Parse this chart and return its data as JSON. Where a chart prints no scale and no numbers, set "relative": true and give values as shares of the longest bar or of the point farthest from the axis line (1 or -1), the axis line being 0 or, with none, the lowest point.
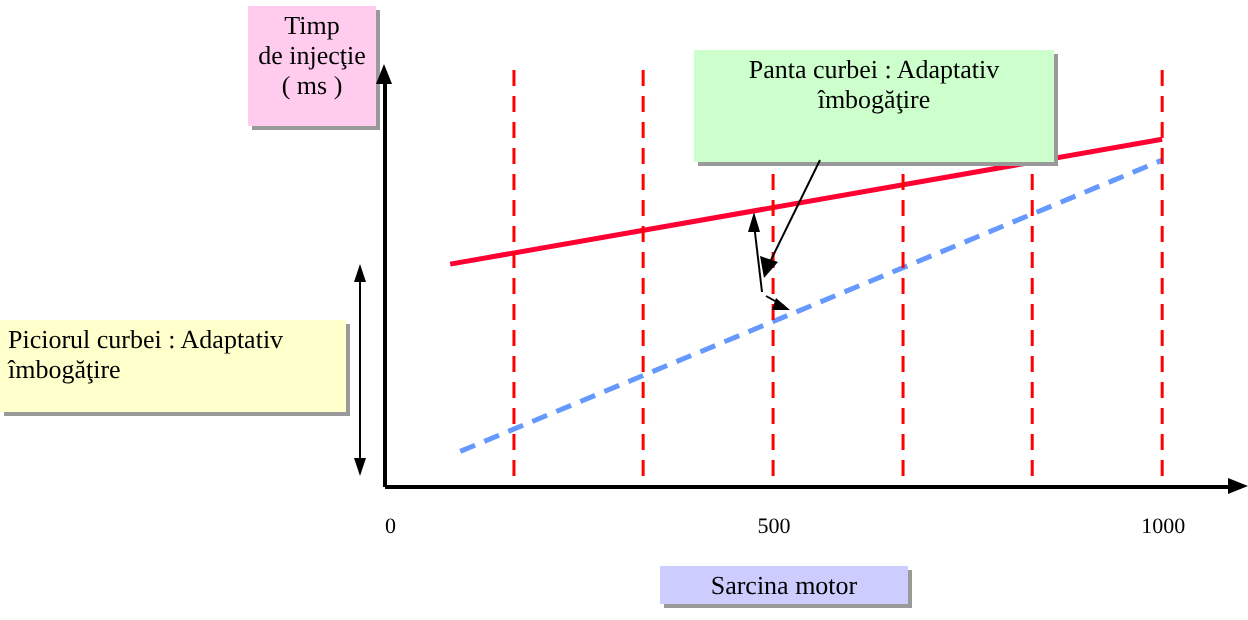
{
  "chart_data": {
    "type": "line",
    "relative": true,
    "xlabel": "Sarcina motor",
    "ylabel": "Timp\nde injecţie\n( ms )",
    "xlim": [
      0,
      1100
    ],
    "xticks": [
      0,
      500,
      1000
    ],
    "grid": false,
    "series": [
      {
        "color": "#ff0033",
        "line_style": "solid",
        "x": [
          85,
          1000
        ],
        "values": [
          0.64,
          1
        ]
      },
      {
        "color": "#6699ff",
        "line_style": "dashed",
        "x": [
          98,
          1000
        ],
        "values": [
          0.1,
          0.94
        ]
      }
    ],
    "ref_lines": [
      {
        "axis": "x",
        "value": 167,
        "color": "#ff0000",
        "line_style": "dashed"
      },
      {
        "axis": "x",
        "value": 333,
        "color": "#ff0000",
        "line_style": "dashed"
      },
      {
        "axis": "x",
        "value": 500,
        "color": "#ff0000",
        "line_style": "dashed"
      },
      {
        "axis": "x",
        "value": 667,
        "color": "#ff0000",
        "line_style": "dashed"
      },
      {
        "axis": "x",
        "value": 833,
        "color": "#ff0000",
        "line_style": "dashed"
      },
      {
        "axis": "x",
        "value": 1000,
        "color": "#ff0000",
        "line_style": "dashed"
      }
    ],
    "annotations": [
      "Panta curbei : Adaptativ îmbogăţire",
      "Piciorul curbei : Adaptativ îmbogăţire"
    ]
  }
}
